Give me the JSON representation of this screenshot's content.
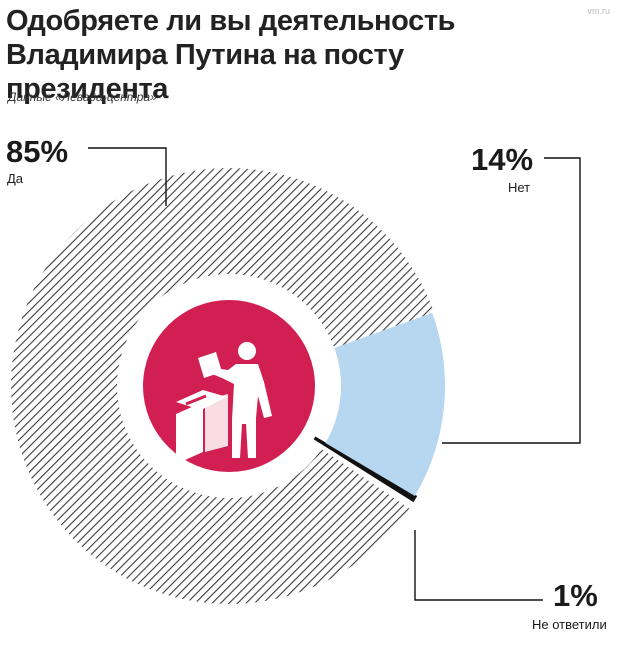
{
  "header": {
    "title_line1": "Одобряете ли вы деятельность",
    "title_line2": "Владимира Путина на посту президента",
    "subtitle": "Данные «Левада-центра»",
    "watermark": "vm.ru"
  },
  "chart_data": {
    "type": "pie",
    "variant": "donut",
    "title": "Одобряете ли вы деятельность Владимира Путина на посту президента",
    "source": "Данные «Левада-центра»",
    "slices": [
      {
        "label": "Да",
        "value": 85,
        "value_label": "85%",
        "fill": "hatched",
        "color": "#3a3a3a"
      },
      {
        "label": "Нет",
        "value": 14,
        "value_label": "14%",
        "fill": "solid",
        "color": "#b7d6f0"
      },
      {
        "label": "Не ответили",
        "value": 1,
        "value_label": "1%",
        "fill": "solid",
        "color": "#111111"
      }
    ],
    "center_icon": "voter-ballot-box-icon",
    "colors": {
      "center": "#d11f52",
      "no": "#b7d6f0",
      "undecided": "#111111",
      "hatch": "#3a3a3a"
    }
  }
}
